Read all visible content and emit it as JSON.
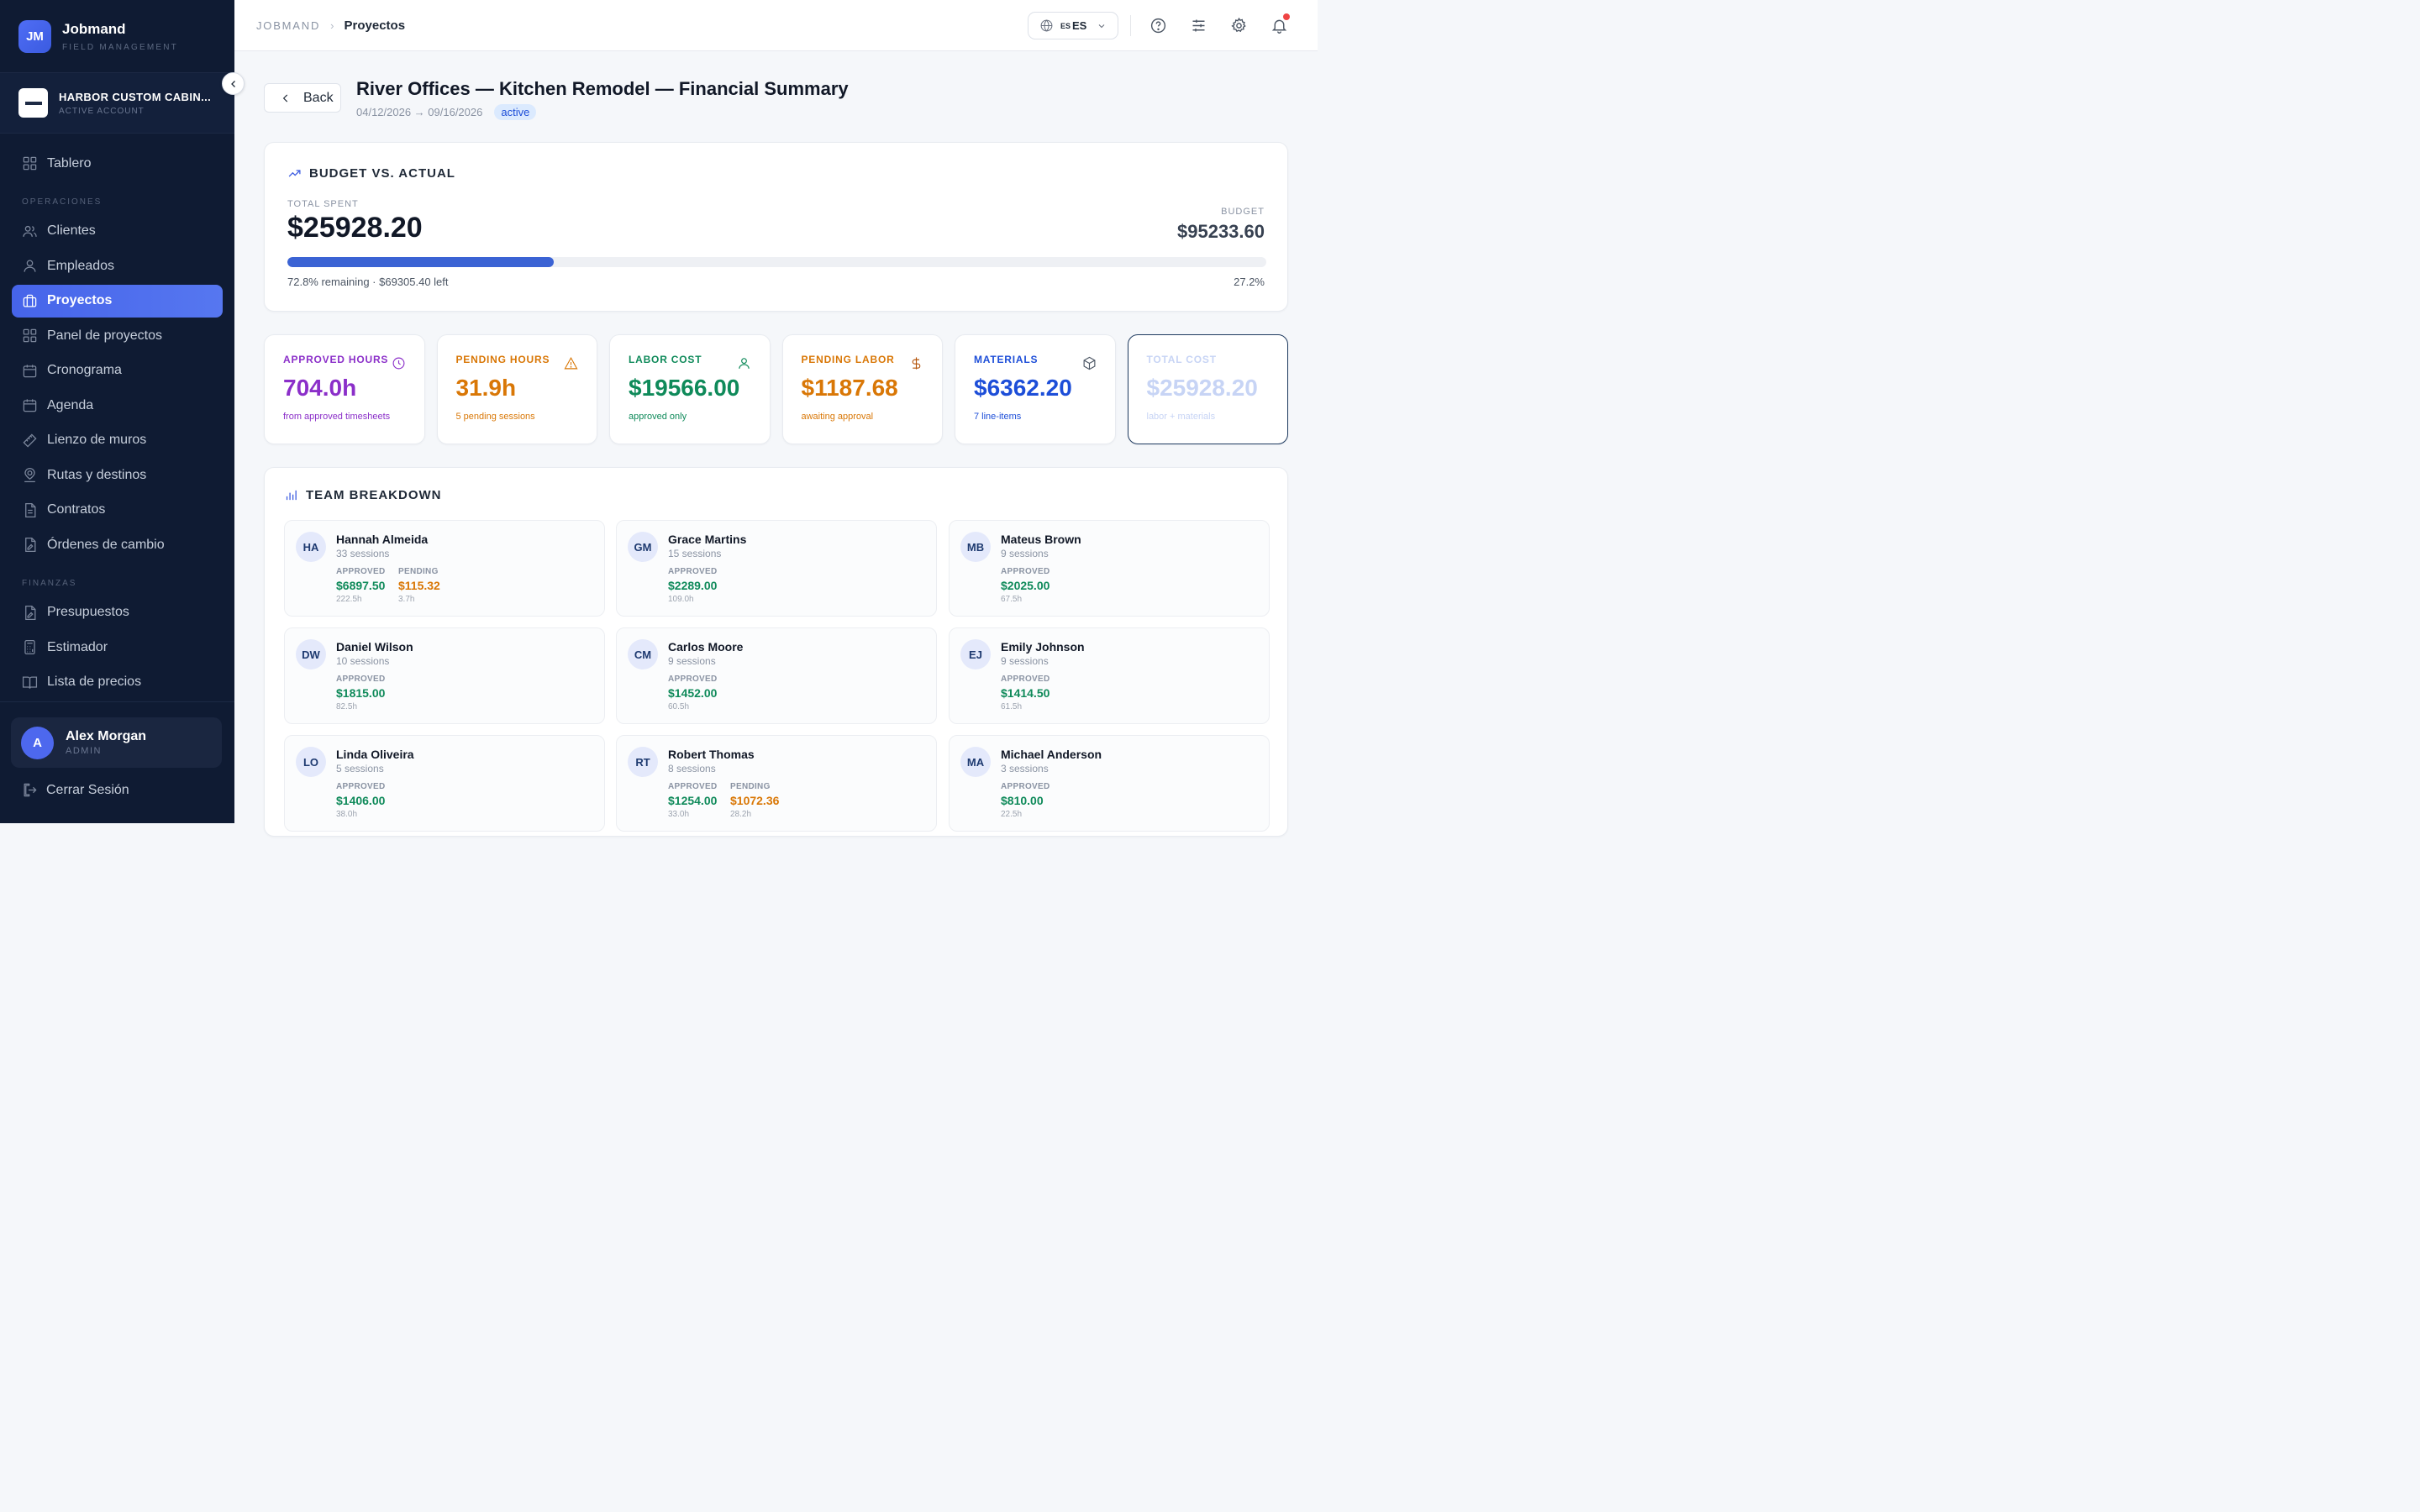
{
  "brand": {
    "initials": "JM",
    "name": "Jobmand",
    "subtitle": "FIELD MANAGEMENT"
  },
  "account": {
    "name": "HARBOR CUSTOM CABIN...",
    "status": "ACTIVE ACCOUNT"
  },
  "sidebar": {
    "top_item": {
      "label": "Tablero",
      "icon": "grid-icon"
    },
    "operaciones_label": "OPERACIONES",
    "operaciones": [
      {
        "label": "Clientes",
        "icon": "users-icon"
      },
      {
        "label": "Empleados",
        "icon": "user-icon"
      },
      {
        "label": "Proyectos",
        "icon": "briefcase-icon",
        "active": true
      },
      {
        "label": "Panel de proyectos",
        "icon": "grid-icon"
      },
      {
        "label": "Cronograma",
        "icon": "calendar-icon"
      },
      {
        "label": "Agenda",
        "icon": "calendar-icon"
      },
      {
        "label": "Lienzo de muros",
        "icon": "ruler-icon"
      },
      {
        "label": "Rutas y destinos",
        "icon": "map-pin-icon"
      },
      {
        "label": "Contratos",
        "icon": "document-icon"
      },
      {
        "label": "Órdenes de cambio",
        "icon": "document-edit-icon"
      }
    ],
    "finanzas_label": "FINANZAS",
    "finanzas": [
      {
        "label": "Presupuestos",
        "icon": "document-edit-icon"
      },
      {
        "label": "Estimador",
        "icon": "calculator-icon"
      },
      {
        "label": "Lista de precios",
        "icon": "book-icon"
      }
    ]
  },
  "user": {
    "initial": "A",
    "name": "Alex Morgan",
    "role": "ADMIN"
  },
  "logout_label": "Cerrar Sesión",
  "topbar": {
    "breadcrumb_root": "JOBMAND",
    "breadcrumb_current": "Proyectos",
    "lang_flag": "ES",
    "lang_code": "ES"
  },
  "header": {
    "back_label": "Back",
    "title": "River Offices — Kitchen Remodel — Financial Summary",
    "dates": "04/12/2026 → 09/16/2026",
    "status": "active"
  },
  "budget": {
    "title": "BUDGET VS. ACTUAL",
    "total_spent_label": "TOTAL SPENT",
    "total_spent": "$25928.20",
    "budget_label": "BUDGET",
    "budget_value": "$95233.60",
    "progress_fraction": 0.272,
    "remaining_text": "72.8% remaining · $69305.40 left",
    "percent_text": "27.2%"
  },
  "stats": [
    {
      "label": "APPROVED HOURS",
      "value": "704.0h",
      "sub": "from approved timesheets",
      "icon": "clock-icon",
      "color": "#8b2fc9"
    },
    {
      "label": "PENDING HOURS",
      "value": "31.9h",
      "sub": "5 pending sessions",
      "icon": "warning-icon",
      "color": "#d97706"
    },
    {
      "label": "LABOR COST",
      "value": "$19566.00",
      "sub": "approved only",
      "icon": "user-icon",
      "color": "#0f8a5a"
    },
    {
      "label": "PENDING LABOR",
      "value": "$1187.68",
      "sub": "awaiting approval",
      "icon": "dollar-icon",
      "color": "#d97706"
    },
    {
      "label": "MATERIALS",
      "value": "$6362.20",
      "sub": "7 line-items",
      "icon": "box-icon",
      "color": "#1d4ed8"
    },
    {
      "label": "TOTAL COST",
      "value": "$25928.20",
      "sub": "labor + materials",
      "icon": "",
      "color": "#c7d4f5",
      "selected": true
    }
  ],
  "team": {
    "title": "TEAM BREAKDOWN",
    "approved_label": "APPROVED",
    "pending_label": "PENDING",
    "members": [
      {
        "initials": "HA",
        "name": "Hannah Almeida",
        "sessions": "33 sessions",
        "approved": "$6897.50",
        "approved_hours": "222.5h",
        "pending": "$115.32",
        "pending_hours": "3.7h"
      },
      {
        "initials": "GM",
        "name": "Grace Martins",
        "sessions": "15 sessions",
        "approved": "$2289.00",
        "approved_hours": "109.0h"
      },
      {
        "initials": "MB",
        "name": "Mateus Brown",
        "sessions": "9 sessions",
        "approved": "$2025.00",
        "approved_hours": "67.5h"
      },
      {
        "initials": "DW",
        "name": "Daniel Wilson",
        "sessions": "10 sessions",
        "approved": "$1815.00",
        "approved_hours": "82.5h"
      },
      {
        "initials": "CM",
        "name": "Carlos Moore",
        "sessions": "9 sessions",
        "approved": "$1452.00",
        "approved_hours": "60.5h"
      },
      {
        "initials": "EJ",
        "name": "Emily Johnson",
        "sessions": "9 sessions",
        "approved": "$1414.50",
        "approved_hours": "61.5h"
      },
      {
        "initials": "LO",
        "name": "Linda Oliveira",
        "sessions": "5 sessions",
        "approved": "$1406.00",
        "approved_hours": "38.0h"
      },
      {
        "initials": "RT",
        "name": "Robert Thomas",
        "sessions": "8 sessions",
        "approved": "$1254.00",
        "approved_hours": "33.0h",
        "pending": "$1072.36",
        "pending_hours": "28.2h"
      },
      {
        "initials": "MA",
        "name": "Michael Anderson",
        "sessions": "3 sessions",
        "approved": "$810.00",
        "approved_hours": "22.5h"
      }
    ]
  }
}
